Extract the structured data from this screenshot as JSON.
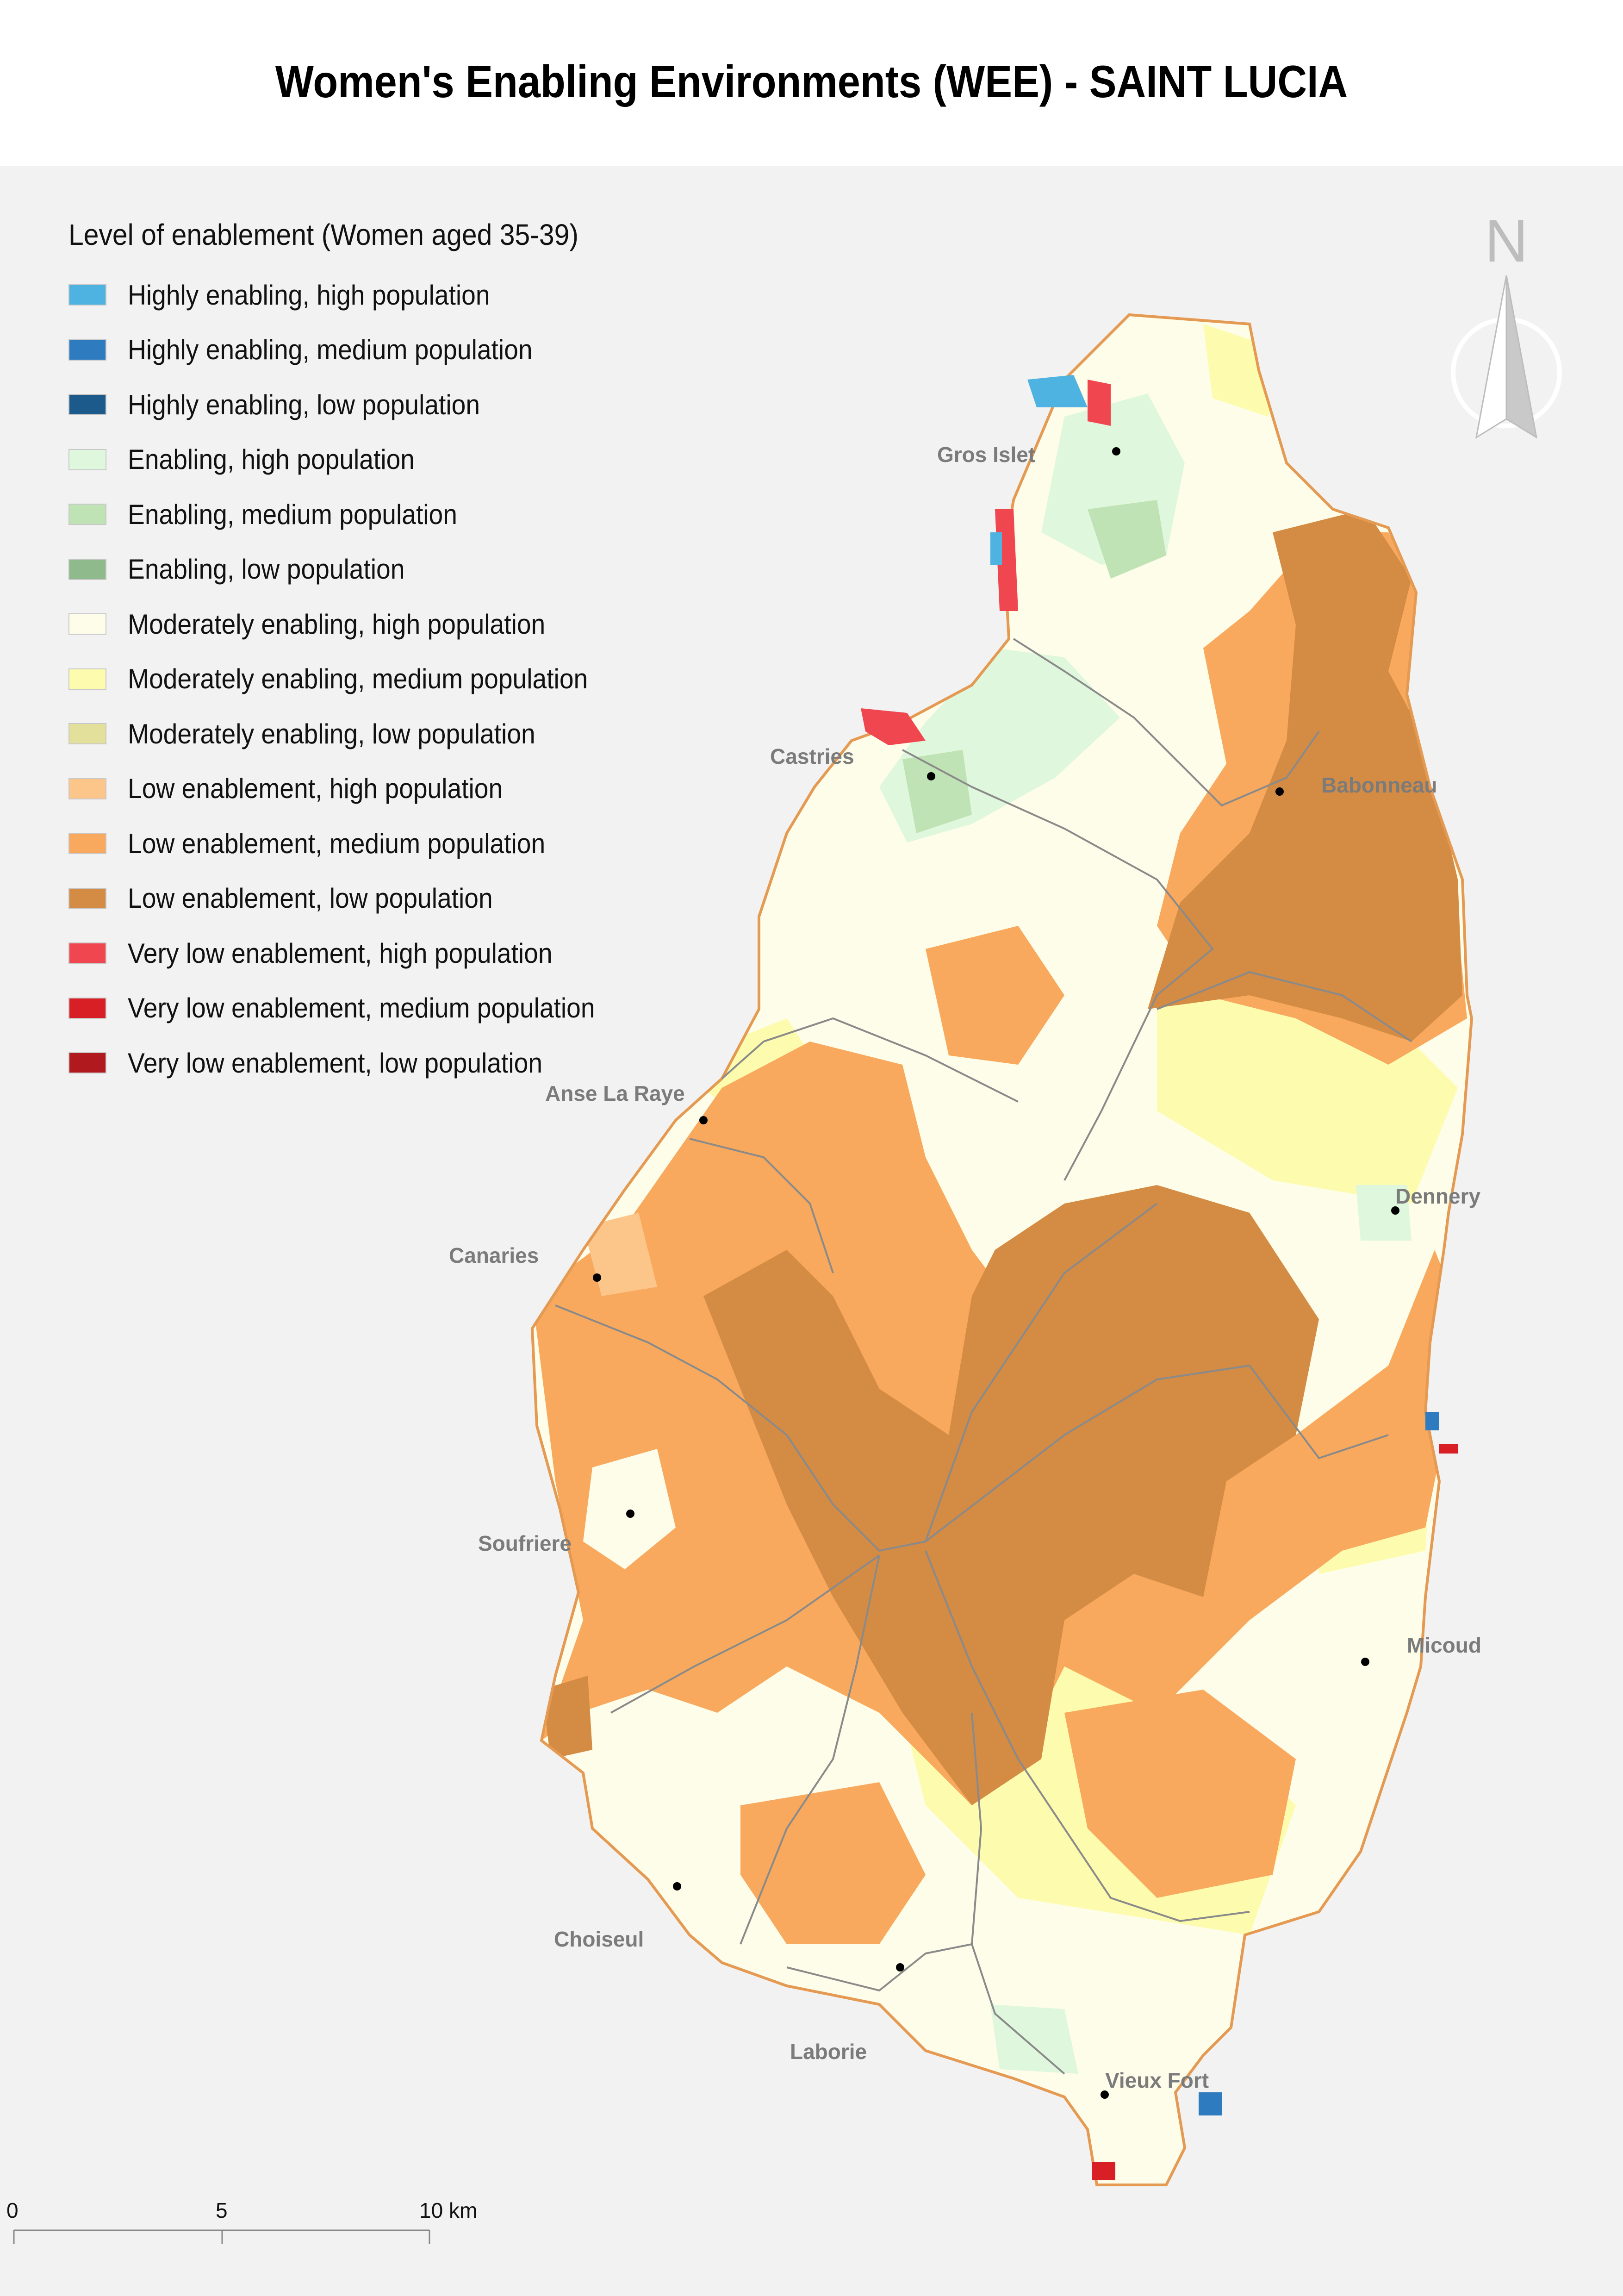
{
  "title": "Women's Enabling Environments (WEE) - SAINT LUCIA",
  "legend": {
    "title": "Level of enablement (Women aged 35-39)",
    "items": [
      {
        "label": "Highly enabling, high population",
        "color": "#4eb3e0"
      },
      {
        "label": "Highly enabling, medium population",
        "color": "#2f7bbf"
      },
      {
        "label": "Highly enabling, low population",
        "color": "#1d5a8c"
      },
      {
        "label": "Enabling, high population",
        "color": "#dff7dc"
      },
      {
        "label": "Enabling, medium population",
        "color": "#bfe3b5"
      },
      {
        "label": "Enabling, low population",
        "color": "#8fba8c"
      },
      {
        "label": "Moderately enabling, high population",
        "color": "#fefde9"
      },
      {
        "label": "Moderately enabling, medium population",
        "color": "#fdfcae"
      },
      {
        "label": "Moderately enabling, low population",
        "color": "#e2e09a"
      },
      {
        "label": "Low enablement, high population",
        "color": "#fcc58a"
      },
      {
        "label": "Low enablement, medium population",
        "color": "#f8a95d"
      },
      {
        "label": "Low enablement, low population",
        "color": "#d48b43"
      },
      {
        "label": "Very low enablement, high population",
        "color": "#f04650"
      },
      {
        "label": "Very low enablement, medium population",
        "color": "#d81f25"
      },
      {
        "label": "Very low enablement, low population",
        "color": "#b01a1f"
      }
    ]
  },
  "places": [
    {
      "name": "Gros Islet"
    },
    {
      "name": "Castries"
    },
    {
      "name": "Babonneau"
    },
    {
      "name": "Anse La Raye"
    },
    {
      "name": "Dennery"
    },
    {
      "name": "Canaries"
    },
    {
      "name": "Soufriere"
    },
    {
      "name": "Micoud"
    },
    {
      "name": "Choiseul"
    },
    {
      "name": "Laborie"
    },
    {
      "name": "Vieux Fort"
    }
  ],
  "north_arrow": {
    "label": "N",
    "icon": "north-arrow-icon"
  },
  "scale_bar": {
    "labels": [
      "0",
      "5",
      "10 km"
    ]
  }
}
